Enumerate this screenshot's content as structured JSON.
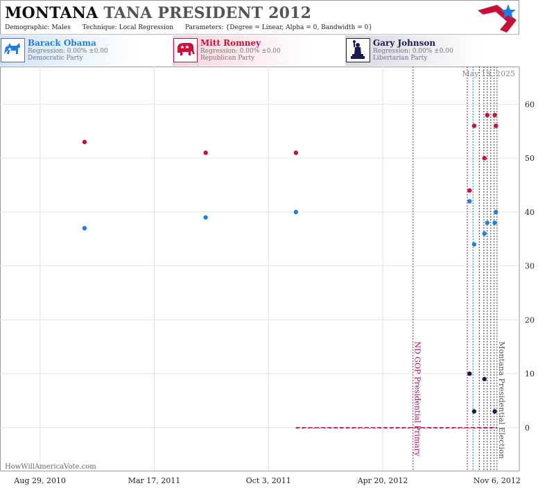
{
  "header": {
    "title_main": "MONTANA",
    "title_rest": "TANA PRESIDENT 2012",
    "demographic_label": "Demographic:",
    "demographic_value": "Males",
    "technique_label": "Technique:",
    "technique_value": "Local Regression",
    "parameters_label": "Parameters:",
    "parameters_value": "{Degree = Linear, Alpha = 0, Bandwidth = 0}"
  },
  "candidates": [
    {
      "name": "Barack Obama",
      "regression": "Regression: 0.00% ±0.00",
      "party": "Democratic Party",
      "color": "#1f7fe0",
      "icon": "donkey-icon"
    },
    {
      "name": "Mitt Romney",
      "regression": "Regression: 0.00% ±0.00",
      "party": "Republican Party",
      "color": "#c8103a",
      "icon": "elephant-icon"
    },
    {
      "name": "Gary Johnson",
      "regression": "Regression: 0.00% ±0.00",
      "party": "Libertarian Party",
      "color": "#1a1a4e",
      "icon": "liberty-statue-icon"
    }
  ],
  "watermark": "HowWillAmericaVote.com",
  "chart_data": {
    "type": "scatter",
    "date_label": "May 13, 2025",
    "x_ticks": [
      "Aug 29, 2010",
      "Mar 17, 2011",
      "Oct 3, 2011",
      "Apr 20, 2012",
      "Nov 6, 2012"
    ],
    "x_range": [
      "2010-06-20",
      "2012-12-15"
    ],
    "y_ticks": [
      0,
      10,
      20,
      30,
      40,
      50,
      60
    ],
    "ylim": [
      -8,
      67
    ],
    "grid": true,
    "annotations": [
      {
        "label": "ND GOP Presidential Primary",
        "date": "2012-06-12",
        "color": "#a01060"
      },
      {
        "label": "Montana Presidential Election",
        "date": "2012-11-06",
        "color": "#555555"
      }
    ],
    "poll_lines": [
      {
        "date": "2012-09-15",
        "color": "#a01060"
      },
      {
        "date": "2012-09-25",
        "color": "#1a6f8a"
      },
      {
        "date": "2012-10-06",
        "color": "#333333"
      },
      {
        "date": "2012-10-14",
        "color": "#333333"
      },
      {
        "date": "2012-10-20",
        "color": "#333333"
      },
      {
        "date": "2012-10-26",
        "color": "#333333"
      },
      {
        "date": "2012-11-01",
        "color": "#333333"
      }
    ],
    "series": [
      {
        "name": "Barack Obama",
        "color": "#1f7fe0",
        "points": [
          {
            "x": "2010-11-15",
            "y": 37
          },
          {
            "x": "2011-06-15",
            "y": 39
          },
          {
            "x": "2011-11-20",
            "y": 40
          },
          {
            "x": "2012-09-19",
            "y": 42
          },
          {
            "x": "2012-09-27",
            "y": 34
          },
          {
            "x": "2012-10-15",
            "y": 36
          },
          {
            "x": "2012-10-20",
            "y": 38
          },
          {
            "x": "2012-11-02",
            "y": 38
          },
          {
            "x": "2012-11-04",
            "y": 40
          }
        ]
      },
      {
        "name": "Mitt Romney",
        "color": "#c8103a",
        "points": [
          {
            "x": "2010-11-15",
            "y": 53
          },
          {
            "x": "2011-06-15",
            "y": 51
          },
          {
            "x": "2011-11-20",
            "y": 51
          },
          {
            "x": "2012-09-19",
            "y": 44
          },
          {
            "x": "2012-09-27",
            "y": 56
          },
          {
            "x": "2012-10-15",
            "y": 50
          },
          {
            "x": "2012-10-20",
            "y": 58
          },
          {
            "x": "2012-11-02",
            "y": 58
          },
          {
            "x": "2012-11-04",
            "y": 56
          }
        ]
      },
      {
        "name": "Gary Johnson",
        "color": "#1a1a4e",
        "points": [
          {
            "x": "2012-09-19",
            "y": 10
          },
          {
            "x": "2012-09-27",
            "y": 3
          },
          {
            "x": "2012-10-15",
            "y": 9
          },
          {
            "x": "2012-11-02",
            "y": 3
          }
        ]
      }
    ],
    "baseline": {
      "from": "2011-11-20",
      "to": "2012-11-06",
      "y": 0,
      "color": "#c8103a"
    }
  }
}
